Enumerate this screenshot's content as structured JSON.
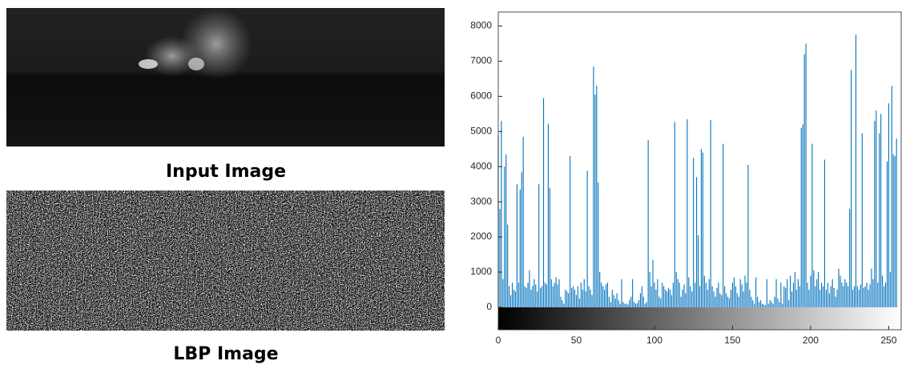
{
  "captions": {
    "input": "Input Image",
    "lbp": "LBP Image"
  },
  "chart_data": {
    "type": "bar",
    "color": "#0072bd",
    "x": [
      0,
      1,
      2,
      3,
      4,
      5,
      6,
      7,
      8,
      9,
      10,
      11,
      12,
      13,
      14,
      15,
      16,
      17,
      18,
      19,
      20,
      21,
      22,
      23,
      24,
      25,
      26,
      27,
      28,
      29,
      30,
      31,
      32,
      33,
      34,
      35,
      36,
      37,
      38,
      39,
      40,
      41,
      42,
      43,
      44,
      45,
      46,
      47,
      48,
      49,
      50,
      51,
      52,
      53,
      54,
      55,
      56,
      57,
      58,
      59,
      60,
      61,
      62,
      63,
      64,
      65,
      66,
      67,
      68,
      69,
      70,
      71,
      72,
      73,
      74,
      75,
      76,
      77,
      78,
      79,
      80,
      81,
      82,
      83,
      84,
      85,
      86,
      87,
      88,
      89,
      90,
      91,
      92,
      93,
      94,
      95,
      96,
      97,
      98,
      99,
      100,
      101,
      102,
      103,
      104,
      105,
      106,
      107,
      108,
      109,
      110,
      111,
      112,
      113,
      114,
      115,
      116,
      117,
      118,
      119,
      120,
      121,
      122,
      123,
      124,
      125,
      126,
      127,
      128,
      129,
      130,
      131,
      132,
      133,
      134,
      135,
      136,
      137,
      138,
      139,
      140,
      141,
      142,
      143,
      144,
      145,
      146,
      147,
      148,
      149,
      150,
      151,
      152,
      153,
      154,
      155,
      156,
      157,
      158,
      159,
      160,
      161,
      162,
      163,
      164,
      165,
      166,
      167,
      168,
      169,
      170,
      171,
      172,
      173,
      174,
      175,
      176,
      177,
      178,
      179,
      180,
      181,
      182,
      183,
      184,
      185,
      186,
      187,
      188,
      189,
      190,
      191,
      192,
      193,
      194,
      195,
      196,
      197,
      198,
      199,
      200,
      201,
      202,
      203,
      204,
      205,
      206,
      207,
      208,
      209,
      210,
      211,
      212,
      213,
      214,
      215,
      216,
      217,
      218,
      219,
      220,
      221,
      222,
      223,
      224,
      225,
      226,
      227,
      228,
      229,
      230,
      231,
      232,
      233,
      234,
      235,
      236,
      237,
      238,
      239,
      240,
      241,
      242,
      243,
      244,
      245,
      246,
      247,
      248,
      249,
      250,
      251,
      252,
      253,
      254,
      255
    ],
    "values": [
      4900,
      2800,
      5300,
      800,
      4000,
      4350,
      2350,
      600,
      350,
      700,
      500,
      450,
      3500,
      700,
      3350,
      3850,
      4850,
      600,
      550,
      700,
      1050,
      500,
      600,
      800,
      650,
      450,
      3500,
      550,
      600,
      5950,
      700,
      650,
      5220,
      3400,
      800,
      600,
      700,
      850,
      650,
      800,
      300,
      200,
      100,
      500,
      450,
      400,
      4300,
      550,
      600,
      500,
      350,
      600,
      250,
      700,
      500,
      800,
      450,
      3880,
      600,
      500,
      350,
      6850,
      6050,
      6300,
      3550,
      1000,
      700,
      600,
      500,
      650,
      700,
      300,
      150,
      500,
      350,
      250,
      400,
      200,
      100,
      800,
      150,
      100,
      100,
      80,
      200,
      300,
      800,
      150,
      100,
      120,
      200,
      400,
      600,
      300,
      100,
      150,
      4750,
      1000,
      600,
      1350,
      700,
      500,
      800,
      300,
      250,
      700,
      600,
      500,
      450,
      550,
      500,
      350,
      700,
      5270,
      1000,
      800,
      700,
      300,
      500,
      650,
      400,
      5350,
      850,
      600,
      450,
      4250,
      700,
      3700,
      2050,
      600,
      4500,
      4400,
      900,
      700,
      500,
      800,
      5330,
      600,
      450,
      300,
      550,
      700,
      400,
      350,
      4650,
      600,
      400,
      300,
      250,
      500,
      700,
      850,
      600,
      400,
      300,
      800,
      650,
      450,
      900,
      700,
      4050,
      500,
      300,
      200,
      100,
      850,
      300,
      150,
      200,
      100,
      80,
      60,
      800,
      100,
      200,
      150,
      100,
      300,
      800,
      250,
      150,
      700,
      100,
      600,
      550,
      800,
      200,
      900,
      450,
      700,
      1000,
      500,
      800,
      600,
      5100,
      5200,
      7200,
      7500,
      700,
      500,
      900,
      4650,
      1050,
      600,
      800,
      1000,
      500,
      700,
      600,
      4200,
      500,
      700,
      400,
      600,
      800,
      550,
      300,
      500,
      1100,
      900,
      700,
      600,
      800,
      700,
      600,
      2800,
      6750,
      500,
      600,
      7750,
      600,
      500,
      650,
      4950,
      550,
      600,
      700,
      500,
      650,
      1100,
      800,
      5300,
      5600,
      700,
      4950,
      5500,
      900,
      600,
      700,
      4150,
      5800,
      1000,
      6300,
      4350,
      4300,
      4800
    ],
    "xlim": [
      0,
      258
    ],
    "ylim": [
      -640,
      8400
    ],
    "xticks": [
      0,
      50,
      100,
      150,
      200,
      250
    ],
    "yticks": [
      0,
      1000,
      2000,
      3000,
      4000,
      5000,
      6000,
      7000,
      8000
    ],
    "grid": false
  }
}
